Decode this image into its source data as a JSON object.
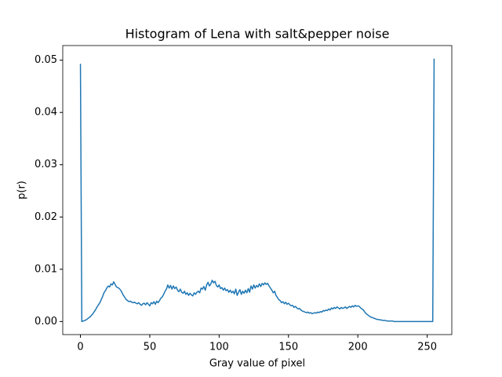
{
  "chart_data": {
    "type": "line",
    "title": "Histogram of Lena with salt&pepper noise",
    "xlabel": "Gray value of pixel",
    "ylabel": "p(r)",
    "xlim": [
      -12.75,
      267.75
    ],
    "xticks": [
      0,
      50,
      100,
      150,
      200,
      250
    ],
    "ylim": [
      -0.0025,
      0.0528
    ],
    "yticks": [
      {
        "value": 0,
        "label": "0.00"
      },
      {
        "value": 0.01,
        "label": "0.01"
      },
      {
        "value": 0.02,
        "label": "0.02"
      },
      {
        "value": 0.03,
        "label": "0.03"
      },
      {
        "value": 0.04,
        "label": "0.04"
      },
      {
        "value": 0.05,
        "label": "0.05"
      }
    ],
    "grid": false,
    "x": [
      0,
      1,
      2,
      3,
      4,
      5,
      6,
      7,
      8,
      9,
      10,
      11,
      12,
      13,
      14,
      15,
      16,
      17,
      18,
      19,
      20,
      21,
      22,
      23,
      24,
      25,
      26,
      27,
      28,
      29,
      30,
      31,
      32,
      33,
      34,
      35,
      36,
      37,
      38,
      39,
      40,
      41,
      42,
      43,
      44,
      45,
      46,
      47,
      48,
      49,
      50,
      51,
      52,
      53,
      54,
      55,
      56,
      57,
      58,
      59,
      60,
      61,
      62,
      63,
      64,
      65,
      66,
      67,
      68,
      69,
      70,
      71,
      72,
      73,
      74,
      75,
      76,
      77,
      78,
      79,
      80,
      81,
      82,
      83,
      84,
      85,
      86,
      87,
      88,
      89,
      90,
      91,
      92,
      93,
      94,
      95,
      96,
      97,
      98,
      99,
      100,
      101,
      102,
      103,
      104,
      105,
      106,
      107,
      108,
      109,
      110,
      111,
      112,
      113,
      114,
      115,
      116,
      117,
      118,
      119,
      120,
      121,
      122,
      123,
      124,
      125,
      126,
      127,
      128,
      129,
      130,
      131,
      132,
      133,
      134,
      135,
      136,
      137,
      138,
      139,
      140,
      141,
      142,
      143,
      144,
      145,
      146,
      147,
      148,
      149,
      150,
      151,
      152,
      153,
      154,
      155,
      156,
      157,
      158,
      159,
      160,
      161,
      162,
      163,
      164,
      165,
      166,
      167,
      168,
      169,
      170,
      171,
      172,
      173,
      174,
      175,
      176,
      177,
      178,
      179,
      180,
      181,
      182,
      183,
      184,
      185,
      186,
      187,
      188,
      189,
      190,
      191,
      192,
      193,
      194,
      195,
      196,
      197,
      198,
      199,
      200,
      201,
      202,
      203,
      204,
      205,
      206,
      207,
      208,
      209,
      210,
      211,
      212,
      213,
      214,
      215,
      216,
      217,
      218,
      219,
      220,
      221,
      222,
      223,
      224,
      225,
      226,
      227,
      228,
      229,
      230,
      231,
      232,
      233,
      234,
      235,
      236,
      237,
      238,
      239,
      240,
      241,
      242,
      243,
      244,
      245,
      246,
      247,
      248,
      249,
      250,
      251,
      252,
      253,
      254,
      255
    ],
    "series": [
      {
        "color": "#1f77b4",
        "values": [
          0.0493,
          0.0,
          0.0001,
          0.0002,
          0.0003,
          0.0005,
          0.0007,
          0.0009,
          0.0012,
          0.0015,
          0.0019,
          0.0023,
          0.0028,
          0.0032,
          0.0036,
          0.0042,
          0.0048,
          0.0055,
          0.0059,
          0.0064,
          0.0068,
          0.0066,
          0.0072,
          0.007,
          0.0076,
          0.0071,
          0.0066,
          0.0065,
          0.0063,
          0.006,
          0.0055,
          0.005,
          0.0046,
          0.0042,
          0.004,
          0.0038,
          0.0039,
          0.0037,
          0.0036,
          0.0037,
          0.0035,
          0.0034,
          0.0036,
          0.0033,
          0.0031,
          0.0034,
          0.0035,
          0.0032,
          0.0036,
          0.0033,
          0.003,
          0.0036,
          0.0034,
          0.0038,
          0.0033,
          0.0039,
          0.0036,
          0.004,
          0.0045,
          0.0047,
          0.0052,
          0.0058,
          0.0062,
          0.007,
          0.0064,
          0.0069,
          0.0062,
          0.0068,
          0.0063,
          0.0066,
          0.006,
          0.0057,
          0.0062,
          0.0056,
          0.0054,
          0.0058,
          0.0052,
          0.0055,
          0.005,
          0.0054,
          0.0051,
          0.0049,
          0.0055,
          0.0052,
          0.0056,
          0.0058,
          0.0055,
          0.0064,
          0.0062,
          0.0067,
          0.006,
          0.007,
          0.0075,
          0.0068,
          0.0072,
          0.0079,
          0.0074,
          0.0077,
          0.0069,
          0.0066,
          0.007,
          0.0063,
          0.0065,
          0.006,
          0.0064,
          0.0059,
          0.0061,
          0.0056,
          0.006,
          0.0055,
          0.0058,
          0.0053,
          0.0062,
          0.005,
          0.0056,
          0.0061,
          0.0052,
          0.0058,
          0.0054,
          0.006,
          0.0055,
          0.0063,
          0.0056,
          0.0068,
          0.0062,
          0.007,
          0.0064,
          0.0069,
          0.0066,
          0.0072,
          0.0067,
          0.0073,
          0.007,
          0.0074,
          0.0071,
          0.0073,
          0.0068,
          0.0064,
          0.006,
          0.0055,
          0.0058,
          0.005,
          0.0046,
          0.0042,
          0.004,
          0.0036,
          0.0038,
          0.0034,
          0.0037,
          0.0033,
          0.0035,
          0.0032,
          0.003,
          0.0031,
          0.0027,
          0.0029,
          0.0026,
          0.0024,
          0.0025,
          0.0022,
          0.002,
          0.0019,
          0.0018,
          0.0017,
          0.0018,
          0.0016,
          0.0017,
          0.0015,
          0.0016,
          0.0017,
          0.0016,
          0.0018,
          0.0017,
          0.0019,
          0.0018,
          0.0021,
          0.002,
          0.0022,
          0.0021,
          0.0024,
          0.0022,
          0.0026,
          0.0024,
          0.0027,
          0.0025,
          0.0028,
          0.0026,
          0.0024,
          0.0027,
          0.0025,
          0.0026,
          0.0028,
          0.0025,
          0.0027,
          0.0029,
          0.0027,
          0.003,
          0.0028,
          0.0031,
          0.0029,
          0.003,
          0.0029,
          0.0026,
          0.0024,
          0.0022,
          0.0018,
          0.0015,
          0.0013,
          0.0011,
          0.0009,
          0.0008,
          0.0007,
          0.0006,
          0.0005,
          0.0004,
          0.0004,
          0.0003,
          0.0003,
          0.0002,
          0.0002,
          0.0002,
          0.0001,
          0.0001,
          0.0001,
          0.0001,
          0.0001,
          0.0,
          0.0,
          0.0,
          0.0,
          0.0,
          0.0,
          0.0,
          0.0,
          0.0,
          0.0,
          0.0,
          0.0,
          0.0,
          0.0,
          0.0,
          0.0,
          0.0,
          0.0,
          0.0,
          0.0,
          0.0,
          0.0,
          0.0,
          0.0,
          0.0,
          0.0,
          0.0,
          0.0,
          0.0,
          0.0503
        ]
      }
    ]
  }
}
